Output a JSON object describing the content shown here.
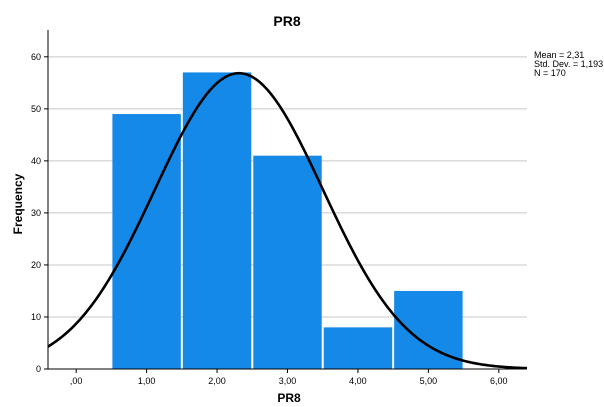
{
  "chart_data": {
    "type": "bar",
    "title": "PR8",
    "xlabel": "PR8",
    "ylabel": "Frequency",
    "bins": [
      {
        "x_start": 0.5,
        "x_end": 1.5,
        "value": 49
      },
      {
        "x_start": 1.5,
        "x_end": 2.5,
        "value": 57
      },
      {
        "x_start": 2.5,
        "x_end": 3.5,
        "value": 41
      },
      {
        "x_start": 3.5,
        "x_end": 4.5,
        "value": 8
      },
      {
        "x_start": 4.5,
        "x_end": 5.5,
        "value": 15
      }
    ],
    "xlim": [
      -0.4,
      6.4
    ],
    "ylim": [
      0,
      64
    ],
    "x_ticks": [
      {
        "value": 0,
        "label": ",00"
      },
      {
        "value": 1,
        "label": "1,00"
      },
      {
        "value": 2,
        "label": "2,00"
      },
      {
        "value": 3,
        "label": "3,00"
      },
      {
        "value": 4,
        "label": "4,00"
      },
      {
        "value": 5,
        "label": "5,00"
      },
      {
        "value": 6,
        "label": "6,00"
      }
    ],
    "y_ticks": [
      {
        "value": 0,
        "label": "0"
      },
      {
        "value": 10,
        "label": "10"
      },
      {
        "value": 20,
        "label": "20"
      },
      {
        "value": 30,
        "label": "30"
      },
      {
        "value": 40,
        "label": "40"
      },
      {
        "value": 50,
        "label": "50"
      },
      {
        "value": 60,
        "label": "60"
      }
    ],
    "grid": "horizontal",
    "bar_color": "#1589e8",
    "curve_color": "#000000",
    "normal_curve": {
      "mean": 2.31,
      "std_dev": 1.193,
      "n": 170,
      "bin_width": 1
    },
    "stats_text": [
      "Mean = 2,31",
      "Std. Dev. = 1,193",
      "N = 170"
    ]
  }
}
